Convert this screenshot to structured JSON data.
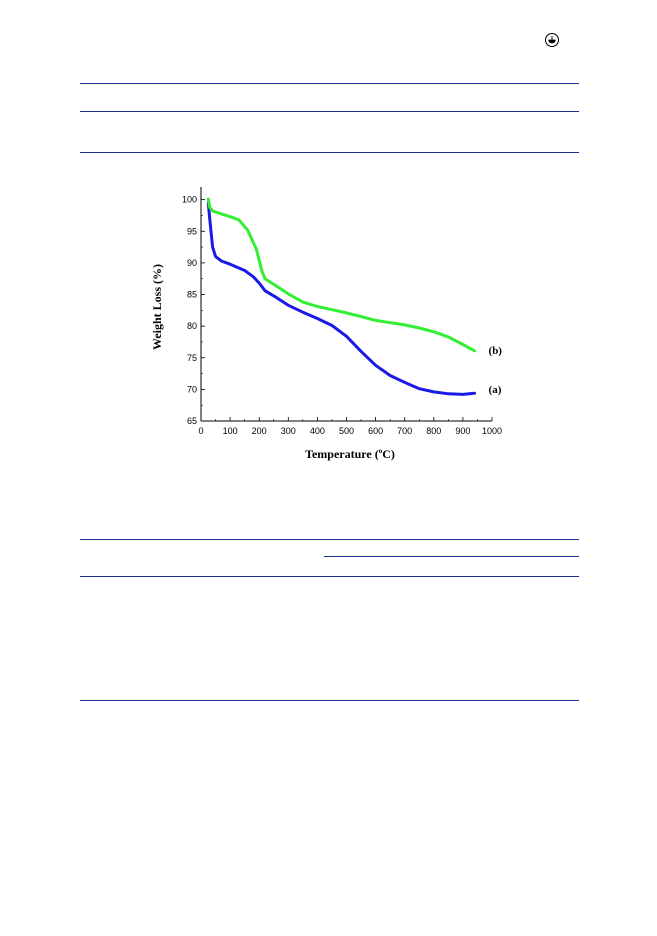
{
  "page": {
    "rules": [
      {
        "name": "rule-top-1"
      },
      {
        "name": "rule-top-2"
      },
      {
        "name": "rule-top-3"
      },
      {
        "name": "rule-mid-1"
      },
      {
        "name": "rule-mid-partial"
      },
      {
        "name": "rule-mid-2"
      },
      {
        "name": "rule-bottom"
      }
    ],
    "corner_icon": "circle-badge-icon",
    "rule_color": "#1f2f8f"
  },
  "chart_data": {
    "type": "line",
    "xlabel": "Temperature (°C)",
    "xlabel_main": "Temperature (",
    "xlabel_deg": "o",
    "xlabel_unit": "C)",
    "ylabel": "Weight Loss (%)",
    "xlim": [
      0,
      1000
    ],
    "ylim": [
      65,
      102
    ],
    "xticks": [
      0,
      100,
      200,
      300,
      400,
      500,
      600,
      700,
      800,
      900,
      1000
    ],
    "yticks": [
      65,
      70,
      75,
      80,
      85,
      90,
      95,
      100
    ],
    "grid": false,
    "series": [
      {
        "name": "(a)",
        "color": "#1a1ae6",
        "points": [
          [
            25,
            99.5
          ],
          [
            30,
            97
          ],
          [
            40,
            92.5
          ],
          [
            50,
            91
          ],
          [
            70,
            90.3
          ],
          [
            100,
            89.8
          ],
          [
            150,
            88.8
          ],
          [
            180,
            87.8
          ],
          [
            200,
            86.8
          ],
          [
            220,
            85.6
          ],
          [
            260,
            84.5
          ],
          [
            300,
            83.3
          ],
          [
            350,
            82.2
          ],
          [
            400,
            81.2
          ],
          [
            450,
            80.1
          ],
          [
            500,
            78.4
          ],
          [
            550,
            76
          ],
          [
            600,
            73.8
          ],
          [
            650,
            72.2
          ],
          [
            700,
            71.1
          ],
          [
            750,
            70.1
          ],
          [
            800,
            69.6
          ],
          [
            850,
            69.3
          ],
          [
            900,
            69.2
          ],
          [
            940,
            69.4
          ]
        ]
      },
      {
        "name": "(b)",
        "color": "#33ee33",
        "points": [
          [
            25,
            100.1
          ],
          [
            30,
            98.8
          ],
          [
            40,
            98.2
          ],
          [
            60,
            97.9
          ],
          [
            100,
            97.3
          ],
          [
            130,
            96.8
          ],
          [
            160,
            95.2
          ],
          [
            190,
            92.2
          ],
          [
            210,
            88.6
          ],
          [
            220,
            87.5
          ],
          [
            260,
            86.3
          ],
          [
            300,
            85.1
          ],
          [
            350,
            83.8
          ],
          [
            400,
            83.1
          ],
          [
            450,
            82.6
          ],
          [
            500,
            82.1
          ],
          [
            550,
            81.5
          ],
          [
            600,
            80.9
          ],
          [
            700,
            80.2
          ],
          [
            750,
            79.7
          ],
          [
            800,
            79.1
          ],
          [
            850,
            78.3
          ],
          [
            900,
            77.1
          ],
          [
            940,
            76.1
          ]
        ]
      }
    ]
  }
}
